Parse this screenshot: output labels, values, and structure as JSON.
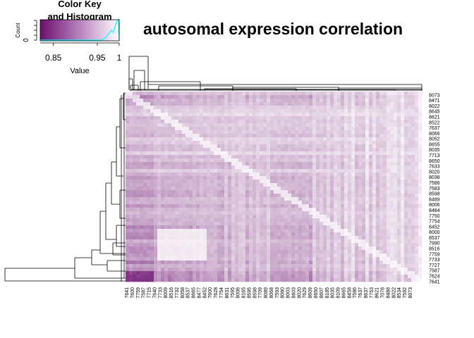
{
  "chart_data": {
    "type": "heatmap",
    "title": "autosomal expression correlation",
    "color_key": {
      "title_line1": "Color Key",
      "title_line2": "and Histogram",
      "xlabel": "Value",
      "ylabel": "Count",
      "xticks": [
        {
          "value": 0.85,
          "label": "0.85"
        },
        {
          "value": 0.95,
          "label": "0.95"
        },
        {
          "value": 1.0,
          "label": "1"
        }
      ],
      "ytick_zero": "0",
      "xlim": [
        0.82,
        1.0
      ],
      "color_low": "#6a0f6e",
      "color_high": "#ffffff",
      "hist_color": "#00ffff"
    },
    "row_labels": [
      "8073",
      "8471",
      "8022",
      "8645",
      "8621",
      "8522",
      "7637",
      "8066",
      "8052",
      "8655",
      "8035",
      "7713",
      "8650",
      "7633",
      "8020",
      "8038",
      "7586",
      "7583",
      "8598",
      "8489",
      "8006",
      "8484",
      "7750",
      "7754",
      "8452",
      "8000",
      "8537",
      "7990",
      "8516",
      "7759",
      "7733",
      "7727",
      "7587",
      "7624",
      "7641"
    ],
    "col_labels": [
      "7641",
      "7600",
      "7759",
      "7587",
      "7715",
      "7640",
      "7733",
      "8009",
      "8516",
      "7732",
      "8058",
      "8537",
      "8665",
      "8477",
      "8452",
      "7600",
      "7628",
      "7754",
      "8631",
      "7595",
      "8006",
      "8165",
      "8595",
      "8598",
      "7709",
      "8089",
      "8068",
      "7593",
      "8060",
      "8003",
      "8603",
      "8020",
      "7629",
      "8609",
      "8650",
      "8607",
      "8185",
      "8035",
      "8109",
      "8665",
      "8458",
      "7586",
      "7637",
      "8637",
      "7753",
      "8621",
      "7078",
      "8488",
      "8022",
      "8534",
      "7592",
      "8073"
    ]
  }
}
